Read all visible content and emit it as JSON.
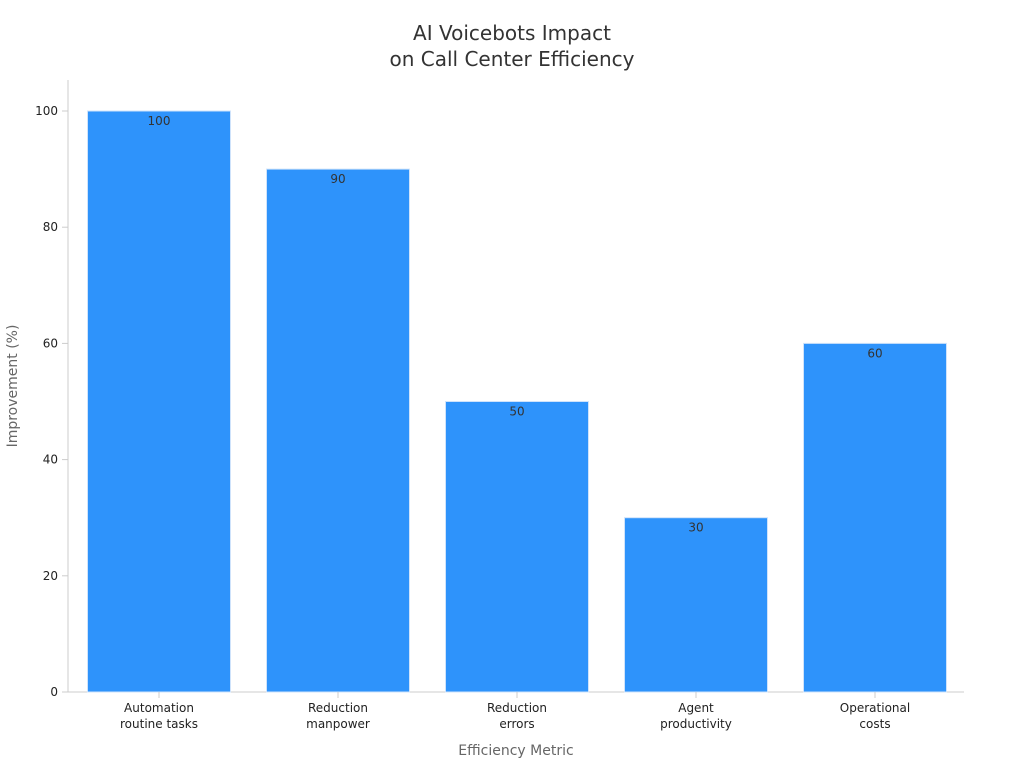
{
  "chart_data": {
    "type": "bar",
    "title": [
      "AI Voicebots Impact",
      "on Call Center Efficiency"
    ],
    "xlabel": "Efficiency Metric",
    "ylabel": "Improvement (%)",
    "categories": [
      [
        "Automation",
        "routine tasks"
      ],
      [
        "Reduction",
        "manpower"
      ],
      [
        "Reduction",
        "errors"
      ],
      [
        "Agent",
        "productivity"
      ],
      [
        "Operational",
        "costs"
      ]
    ],
    "values": [
      100,
      90,
      50,
      30,
      60
    ],
    "data_labels": [
      "100",
      "90",
      "50",
      "30",
      "60"
    ],
    "yticks": [
      0,
      20,
      40,
      60,
      80,
      100
    ],
    "ylim": [
      0,
      105
    ],
    "grid": false,
    "legend": "none",
    "colors": {
      "bar": "#2e93fb",
      "bar_edge": "#cfe3fb",
      "axis": "#cccccc",
      "tick_text": "#222222",
      "label_text": "#666666",
      "title_text": "#333333",
      "data_label_text": "#333333"
    }
  }
}
